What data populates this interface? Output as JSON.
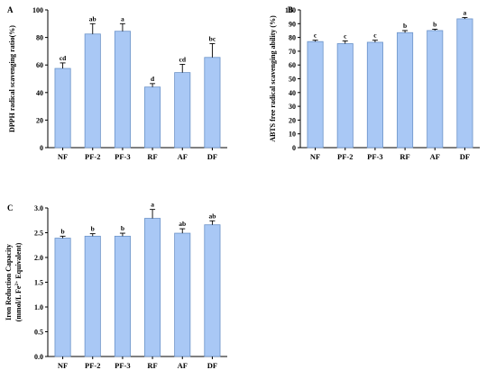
{
  "bar_color": "#a9c8f5",
  "bar_stroke": "#6a92c8",
  "chart_data": [
    {
      "type": "bar",
      "panel": "A",
      "ylabel": "DPPH radical scavenging ratio(%)",
      "ylim": [
        0,
        100
      ],
      "yticks": [
        0,
        20,
        40,
        60,
        80,
        100
      ],
      "tick_labels": [
        "0",
        "20",
        "40",
        "60",
        "80",
        "100"
      ],
      "categories": [
        "NF",
        "PF-2",
        "PF-3",
        "RF",
        "AF",
        "DF"
      ],
      "values": [
        57.5,
        82.5,
        84.5,
        44,
        54.5,
        65.5
      ],
      "errors": [
        4,
        7.5,
        5.5,
        2.5,
        6,
        10
      ],
      "significance": [
        "cd",
        "ab",
        "a",
        "d",
        "cd",
        "bc"
      ]
    },
    {
      "type": "bar",
      "panel": "B",
      "ylabel": "ABTS free radical scavenging ability (%)",
      "ylim": [
        0,
        100
      ],
      "yticks": [
        0,
        10,
        20,
        30,
        40,
        50,
        60,
        70,
        80,
        90,
        100
      ],
      "tick_labels": [
        "0",
        "10",
        "20",
        "30",
        "40",
        "50",
        "60",
        "70",
        "80",
        "90",
        "100"
      ],
      "categories": [
        "NF",
        "PF-2",
        "PF-3",
        "RF",
        "AF",
        "DF"
      ],
      "values": [
        77,
        75.5,
        76.5,
        83.5,
        85,
        93.5
      ],
      "errors": [
        1,
        2,
        1.5,
        1.5,
        1,
        1
      ],
      "significance": [
        "c",
        "c",
        "c",
        "b",
        "b",
        "a"
      ]
    },
    {
      "type": "bar",
      "panel": "C",
      "ylabel_lines": [
        "Iron Reduction Capacity",
        "(mmol/L Fe",
        "2+",
        " Equivalent)"
      ],
      "ylim": [
        0,
        3.0
      ],
      "yticks": [
        0,
        0.5,
        1.0,
        1.5,
        2.0,
        2.5,
        3.0
      ],
      "tick_labels": [
        "0.0",
        "0.5",
        "1.0",
        "1.5",
        "2.0",
        "2.5",
        "3.0"
      ],
      "categories": [
        "NF",
        "PF-2",
        "PF-3",
        "RF",
        "AF",
        "DF"
      ],
      "values": [
        2.39,
        2.43,
        2.43,
        2.79,
        2.49,
        2.66
      ],
      "errors": [
        0.04,
        0.05,
        0.06,
        0.18,
        0.09,
        0.08
      ],
      "significance": [
        "b",
        "b",
        "b",
        "a",
        "ab",
        "ab"
      ]
    }
  ]
}
